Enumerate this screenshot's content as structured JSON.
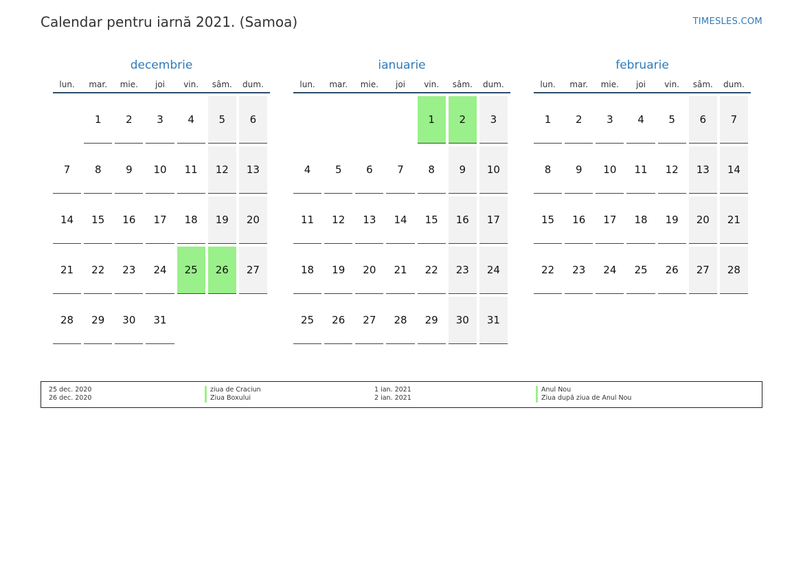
{
  "header": {
    "title": "Calendar pentru iarnă 2021. (Samoa)",
    "brand": "TIMESLES.COM"
  },
  "weekdays": [
    "lun.",
    "mar.",
    "mie.",
    "joi",
    "vin.",
    "sâm.",
    "dum."
  ],
  "colors": {
    "accent": "#2f7ab8",
    "holiday": "#9af08a",
    "weekend": "#f2f2f2"
  },
  "months": [
    {
      "name": "decembrie",
      "weeks": [
        [
          "",
          "1",
          "2",
          "3",
          "4",
          "5",
          "6"
        ],
        [
          "7",
          "8",
          "9",
          "10",
          "11",
          "12",
          "13"
        ],
        [
          "14",
          "15",
          "16",
          "17",
          "18",
          "19",
          "20"
        ],
        [
          "21",
          "22",
          "23",
          "24",
          "25",
          "26",
          "27"
        ],
        [
          "28",
          "29",
          "30",
          "31",
          "",
          "",
          ""
        ]
      ],
      "holidays": [
        "25",
        "26"
      ]
    },
    {
      "name": "ianuarie",
      "weeks": [
        [
          "",
          "",
          "",
          "",
          "1",
          "2",
          "3"
        ],
        [
          "4",
          "5",
          "6",
          "7",
          "8",
          "9",
          "10"
        ],
        [
          "11",
          "12",
          "13",
          "14",
          "15",
          "16",
          "17"
        ],
        [
          "18",
          "19",
          "20",
          "21",
          "22",
          "23",
          "24"
        ],
        [
          "25",
          "26",
          "27",
          "28",
          "29",
          "30",
          "31"
        ]
      ],
      "holidays": [
        "1",
        "2"
      ]
    },
    {
      "name": "februarie",
      "weeks": [
        [
          "1",
          "2",
          "3",
          "4",
          "5",
          "6",
          "7"
        ],
        [
          "8",
          "9",
          "10",
          "11",
          "12",
          "13",
          "14"
        ],
        [
          "15",
          "16",
          "17",
          "18",
          "19",
          "20",
          "21"
        ],
        [
          "22",
          "23",
          "24",
          "25",
          "26",
          "27",
          "28"
        ]
      ],
      "holidays": []
    }
  ],
  "legend": {
    "col1_dates": [
      "25 dec. 2020",
      "26 dec. 2020"
    ],
    "col1_names": [
      "ziua de Craciun",
      "Ziua Boxului"
    ],
    "col2_dates": [
      "1 ian. 2021",
      "2 ian. 2021"
    ],
    "col2_names": [
      "Anul Nou",
      "Ziua după ziua de Anul Nou"
    ]
  }
}
